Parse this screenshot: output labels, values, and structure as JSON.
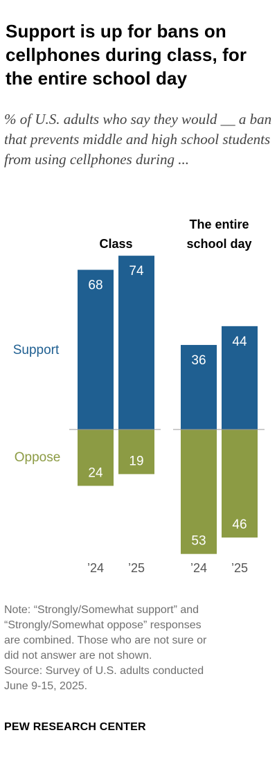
{
  "title": "Support is up for bans on cellphones during class, for the entire school day",
  "subtitle": "% of U.S. adults who say they would __ a ban that prevents middle and high school students from using cellphones during ...",
  "chart_data": {
    "type": "bar",
    "groups": [
      {
        "label_lines": [
          "Class"
        ],
        "categories": [
          "’24",
          "’25"
        ],
        "support": [
          68,
          74
        ],
        "oppose": [
          24,
          19
        ]
      },
      {
        "label_lines": [
          "The entire",
          "school day"
        ],
        "categories": [
          "’24",
          "’25"
        ],
        "support": [
          36,
          44
        ],
        "oppose": [
          53,
          46
        ]
      }
    ],
    "series": [
      {
        "name": "Support",
        "color": "#1f5f91"
      },
      {
        "name": "Oppose",
        "color": "#8c9b44"
      }
    ]
  },
  "note_lines": [
    "Note: “Strongly/Somewhat support” and",
    "“Strongly/Somewhat oppose” responses",
    "are combined. Those who are not sure or",
    "did not answer are not shown.",
    "Source: Survey of U.S. adults conducted",
    "June 9-15, 2025."
  ],
  "footer": "PEW RESEARCH CENTER"
}
